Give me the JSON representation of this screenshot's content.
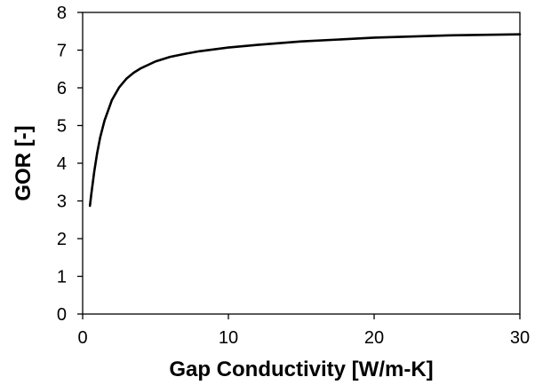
{
  "chart_data": {
    "type": "line",
    "title": "",
    "xlabel": "Gap Conductivity [W/m-K]",
    "ylabel": "GOR [-]",
    "xlim": [
      0,
      30
    ],
    "ylim": [
      0,
      8
    ],
    "x_ticks": [
      "0",
      "10",
      "20",
      "30"
    ],
    "y_ticks": [
      "0",
      "1",
      "2",
      "3",
      "4",
      "5",
      "6",
      "7",
      "8"
    ],
    "grid": false,
    "legend": "none",
    "line_color": "#000000",
    "series": [
      {
        "x": [
          0.5,
          0.6,
          0.8,
          1.0,
          1.2,
          1.5,
          2.0,
          2.5,
          3.0,
          3.5,
          4.0,
          5.0,
          6.0,
          7.0,
          8.0,
          10.0,
          12.0,
          15.0,
          20.0,
          25.0,
          30.0
        ],
        "y": [
          2.87,
          3.2,
          3.79,
          4.28,
          4.68,
          5.13,
          5.67,
          6.01,
          6.24,
          6.4,
          6.52,
          6.7,
          6.82,
          6.9,
          6.97,
          7.07,
          7.14,
          7.23,
          7.33,
          7.39,
          7.42
        ]
      }
    ]
  }
}
